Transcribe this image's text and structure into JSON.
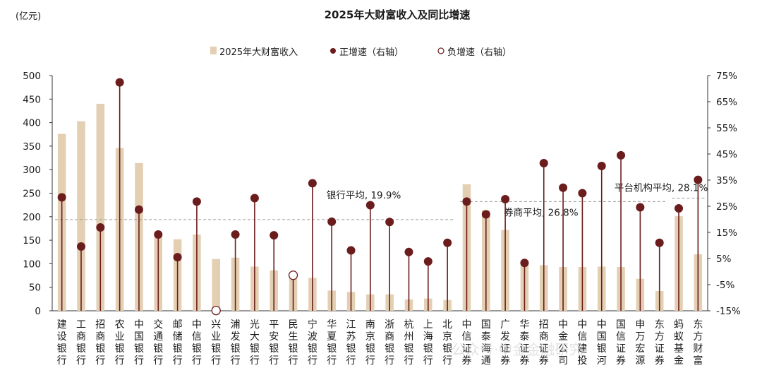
{
  "chart_data": {
    "type": "bar",
    "title": "2025年大财富收入及同比增速",
    "unit_left": "(亿元)",
    "legend": {
      "placement": "top-center",
      "items": [
        {
          "label": "2025年大财富收入",
          "marker": "bar",
          "color": "#e3cfb2"
        },
        {
          "label": "正增速（右轴）",
          "marker": "filled-dot",
          "color": "#6b1c1c"
        },
        {
          "label": "负增速（右轴）",
          "marker": "hollow-dot",
          "color": "#6b1c1c"
        }
      ]
    },
    "categories": [
      "建设银行",
      "工商银行",
      "招商银行",
      "农业银行",
      "中国银行",
      "交通银行",
      "邮储银行",
      "中信银行",
      "兴业银行",
      "浦发银行",
      "光大银行",
      "平安银行",
      "民生银行",
      "宁波银行",
      "华夏银行",
      "江苏银行",
      "南京银行",
      "浙商银行",
      "杭州银行",
      "上海银行",
      "北京银行",
      "中信证券",
      "国泰海通",
      "广发证券",
      "华泰证券",
      "招商证券",
      "中金公司",
      "中信建投",
      "中国银河",
      "国信证券",
      "申万宏源",
      "东方证券",
      "蚂蚁基金",
      "东方财富"
    ],
    "series": [
      {
        "name": "2025年大财富收入",
        "axis": "left",
        "color": "#e3cfb2",
        "values": [
          376,
          403,
          440,
          346,
          314,
          157,
          152,
          162,
          110,
          113,
          94,
          86,
          73,
          70,
          43,
          40,
          35,
          35,
          24,
          26,
          23,
          269,
          214,
          172,
          98,
          97,
          93,
          93,
          94,
          93,
          68,
          42,
          201,
          120
        ]
      },
      {
        "name": "增速（右轴）",
        "axis": "right",
        "color": "#6b1c1c",
        "values": [
          0.284,
          0.096,
          0.169,
          0.724,
          0.237,
          0.142,
          0.055,
          0.268,
          -0.149,
          0.142,
          0.281,
          0.139,
          -0.014,
          0.338,
          0.191,
          0.081,
          0.254,
          0.19,
          0.075,
          0.039,
          0.11,
          0.268,
          0.219,
          0.277,
          0.033,
          0.415,
          0.321,
          0.3,
          0.404,
          0.445,
          0.246,
          0.11,
          0.242,
          0.351
        ]
      }
    ],
    "y_left": {
      "min": 0,
      "max": 500,
      "ticks": [
        "0",
        "50",
        "100",
        "150",
        "200",
        "250",
        "300",
        "350",
        "400",
        "450",
        "500"
      ]
    },
    "y_right": {
      "min": -0.15,
      "max": 0.75,
      "ticks": [
        "-15%",
        "-5%",
        "5%",
        "15%",
        "25%",
        "35%",
        "45%",
        "55%",
        "65%",
        "75%"
      ]
    },
    "averages": [
      {
        "label": "银行平均, 19.9%",
        "value": 0.199,
        "from": "建设银行",
        "to": "北京银行"
      },
      {
        "label": "券商平均, 26.8%",
        "value": 0.268,
        "from": "中信证券",
        "to": "东方证券"
      },
      {
        "label": "平台机构平均, 28.1%",
        "value": 0.281,
        "from": "蚂蚁基金",
        "to": "东方财富"
      }
    ],
    "grid": false,
    "watermark": "公众号·中金金融研究"
  }
}
